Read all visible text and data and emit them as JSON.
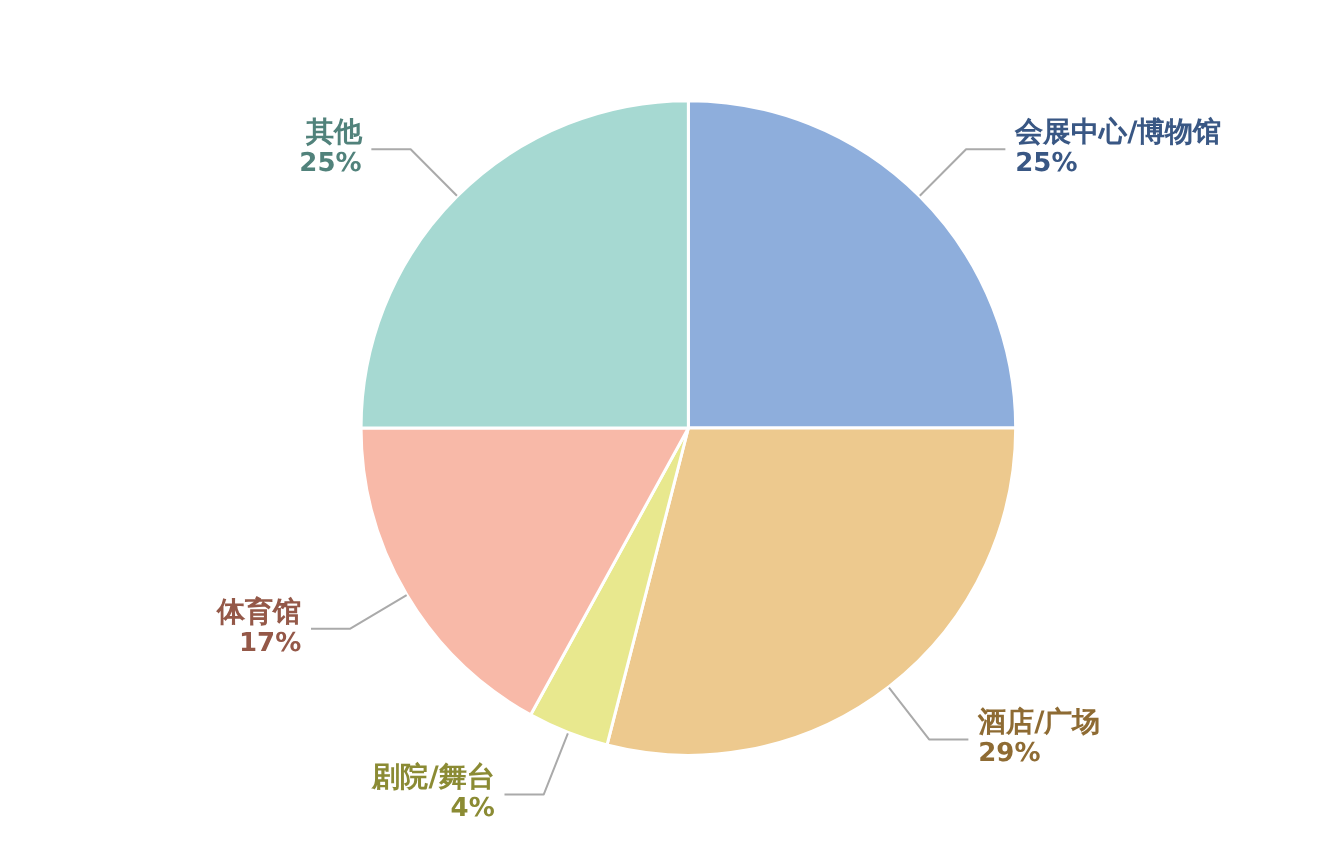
{
  "chart_data": {
    "type": "pie",
    "categories": [
      "会展中心/博物馆",
      "酒店/广场",
      "剧院/舞台",
      "体育馆",
      "其他"
    ],
    "values": [
      25,
      29,
      4,
      17,
      25
    ],
    "value_labels": [
      "25%",
      "29%",
      "4%",
      "17%",
      "25%"
    ],
    "colors": [
      "#8eaedc",
      "#edc98e",
      "#e8e88e",
      "#f8b9a8",
      "#a6d9d2"
    ]
  }
}
